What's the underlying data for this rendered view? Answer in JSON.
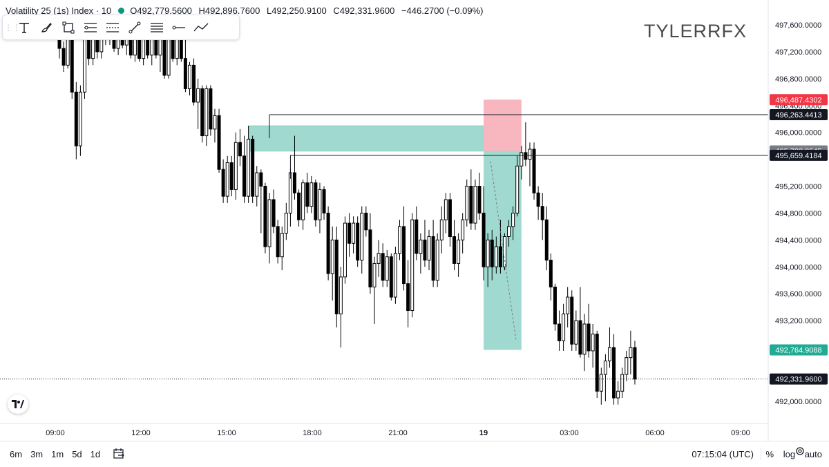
{
  "header": {
    "symbol": "Volatility 25 (1s) Index · 10",
    "open": "O492,779.5600",
    "high": "H492,896.7600",
    "low": "L492,250.9100",
    "close": "C492,331.9600",
    "change": "−446.2700 (−0.09%)"
  },
  "toolbar": {
    "tools": [
      "text-tool-icon",
      "brush-tool-icon",
      "rectangle-tool-icon",
      "fib-tool-icon",
      "pattern-tool-icon",
      "trendline-tool-icon",
      "parallel-channel-icon",
      "horizontal-ray-icon",
      "path-tool-icon"
    ]
  },
  "watermark": "TYLERRFX",
  "timeframes": [
    "6m",
    "3m",
    "1m",
    "5d",
    "1d"
  ],
  "clock": "07:15:04 (UTC)",
  "scale_options": [
    "%",
    "log",
    "auto"
  ],
  "colors": {
    "up": "#ffffff",
    "down": "#000000",
    "candle_outline": "#000000",
    "profit_zone": "#9fd9d0",
    "stop_zone": "#f8b6bf",
    "label_red": "#f23645",
    "label_black": "#131722",
    "label_grey": "#787b86",
    "label_teal": "#22ab94"
  },
  "chart_data": {
    "type": "candlestick",
    "title": "",
    "x_ticks": [
      "09:00",
      "12:00",
      "15:00",
      "18:00",
      "21:00",
      "19",
      "03:00",
      "06:00",
      "09:00"
    ],
    "y_ticks": [
      "497,600.0000",
      "497,200.0000",
      "496,800.0000",
      "496,400.0000",
      "496,000.0000",
      "495,200.0000",
      "494,800.0000",
      "494,400.0000",
      "494,000.0000",
      "493,600.0000",
      "493,200.0000",
      "492,000.0000"
    ],
    "ylim": [
      491900,
      497800
    ],
    "price_labels": [
      {
        "value": 496487.4302,
        "text": "496,487.4302",
        "color": "#f23645"
      },
      {
        "value": 496263.4413,
        "text": "496,263.4413",
        "color": "#131722"
      },
      {
        "value": 495723.9545,
        "text": "495,723.9545",
        "color": "#787b86"
      },
      {
        "value": 495659.4184,
        "text": "495,659.4184",
        "color": "#131722"
      },
      {
        "value": 492764.9088,
        "text": "492,764.9088",
        "color": "#22ab94"
      },
      {
        "value": 492331.96,
        "text": "492,331.9600",
        "color": "#131722"
      }
    ],
    "horizontal_rays": [
      {
        "from_slot": 50,
        "value": 496263.4413
      },
      {
        "from_slot": 55,
        "value": 495659.4184
      }
    ],
    "supply_zone": {
      "from_slot": 45,
      "to_slot": 102,
      "low": 495720,
      "high": 496100
    },
    "short_position": {
      "from_slot": 101,
      "to_slot": 110,
      "entry": 495723.9545,
      "stop": 496487.4302,
      "target": 492764.9088
    },
    "candles": [
      [
        497680,
        497720,
        497100,
        497250
      ],
      [
        497250,
        497350,
        496900,
        497000
      ],
      [
        497000,
        497700,
        496950,
        497600
      ],
      [
        497600,
        497700,
        496500,
        496600
      ],
      [
        496600,
        496750,
        495600,
        495800
      ],
      [
        495800,
        496700,
        495650,
        496600
      ],
      [
        496600,
        497550,
        496500,
        497450
      ],
      [
        497450,
        497600,
        497000,
        497100
      ],
      [
        497100,
        497750,
        497000,
        497650
      ],
      [
        497650,
        497750,
        497100,
        497200
      ],
      [
        497200,
        497700,
        497100,
        497650
      ],
      [
        497650,
        497700,
        497300,
        497400
      ],
      [
        497400,
        497750,
        497300,
        497650
      ],
      [
        497650,
        497700,
        497200,
        497250
      ],
      [
        497250,
        497750,
        497150,
        497700
      ],
      [
        497700,
        497720,
        497250,
        497300
      ],
      [
        497300,
        497700,
        497150,
        497600
      ],
      [
        497600,
        497700,
        497100,
        497150
      ],
      [
        497150,
        497650,
        497050,
        497550
      ],
      [
        497550,
        497650,
        497050,
        497100
      ],
      [
        497100,
        497700,
        497000,
        497650
      ],
      [
        497650,
        497750,
        497100,
        497150
      ],
      [
        497150,
        497700,
        497000,
        497600
      ],
      [
        497600,
        497650,
        497100,
        497150
      ],
      [
        497150,
        497650,
        496900,
        497550
      ],
      [
        497550,
        497600,
        496800,
        496850
      ],
      [
        496850,
        497450,
        496800,
        497400
      ],
      [
        497400,
        497500,
        497050,
        497100
      ],
      [
        497100,
        497650,
        497000,
        497600
      ],
      [
        497600,
        497700,
        497050,
        497100
      ],
      [
        497100,
        497600,
        496600,
        496650
      ],
      [
        496650,
        497050,
        496550,
        497000
      ],
      [
        497000,
        497100,
        496400,
        496450
      ],
      [
        496450,
        496800,
        496050,
        496650
      ],
      [
        496650,
        496700,
        495850,
        495950
      ],
      [
        495950,
        496700,
        495800,
        496650
      ],
      [
        496650,
        496700,
        495950,
        496050
      ],
      [
        496050,
        496350,
        495850,
        496250
      ],
      [
        496250,
        496350,
        495400,
        495450
      ],
      [
        495450,
        495600,
        494950,
        495050
      ],
      [
        495050,
        495650,
        494950,
        495550
      ],
      [
        495550,
        495650,
        495050,
        495150
      ],
      [
        495150,
        496000,
        495000,
        495850
      ],
      [
        495850,
        496050,
        495500,
        495650
      ],
      [
        495650,
        495950,
        494950,
        495050
      ],
      [
        495050,
        496100,
        494950,
        495900
      ],
      [
        495900,
        495950,
        494950,
        495050
      ],
      [
        495050,
        495500,
        494900,
        495400
      ],
      [
        495400,
        495450,
        494500,
        495200
      ],
      [
        495200,
        495250,
        494200,
        494300
      ],
      [
        494300,
        495100,
        494050,
        495000
      ],
      [
        495000,
        495150,
        494500,
        494600
      ],
      [
        494600,
        494700,
        494050,
        494150
      ],
      [
        494150,
        494600,
        493950,
        494500
      ],
      [
        494500,
        494950,
        494400,
        494800
      ],
      [
        494800,
        495450,
        494600,
        495400
      ],
      [
        495400,
        495950,
        495000,
        495100
      ],
      [
        495100,
        495150,
        494600,
        494700
      ],
      [
        494700,
        495300,
        494550,
        495250
      ],
      [
        495250,
        495400,
        494800,
        494900
      ],
      [
        494900,
        495350,
        494800,
        495250
      ],
      [
        495250,
        495300,
        494600,
        494700
      ],
      [
        494700,
        495250,
        494500,
        495150
      ],
      [
        495150,
        495200,
        494700,
        494800
      ],
      [
        494800,
        494900,
        493800,
        493900
      ],
      [
        493900,
        494600,
        493500,
        494400
      ],
      [
        494400,
        494600,
        493100,
        493300
      ],
      [
        493300,
        494000,
        492800,
        493850
      ],
      [
        493850,
        494750,
        493750,
        494650
      ],
      [
        494650,
        494800,
        494150,
        494350
      ],
      [
        494350,
        494750,
        494200,
        494650
      ],
      [
        494650,
        494750,
        494000,
        494100
      ],
      [
        494100,
        494900,
        493900,
        494800
      ],
      [
        494800,
        494900,
        494450,
        494550
      ],
      [
        494550,
        494800,
        493600,
        493700
      ],
      [
        493700,
        494150,
        493150,
        494050
      ],
      [
        494050,
        494400,
        493850,
        494200
      ],
      [
        494200,
        494350,
        493700,
        493800
      ],
      [
        493800,
        494250,
        493700,
        494150
      ],
      [
        494150,
        494200,
        493500,
        493550
      ],
      [
        493550,
        494300,
        493450,
        494200
      ],
      [
        494200,
        494700,
        494100,
        494600
      ],
      [
        494600,
        494900,
        493650,
        493750
      ],
      [
        493750,
        494100,
        493100,
        493350
      ],
      [
        493350,
        494800,
        493250,
        494700
      ],
      [
        494700,
        494900,
        494100,
        494200
      ],
      [
        494200,
        494500,
        493900,
        494400
      ],
      [
        494400,
        494700,
        494000,
        494100
      ],
      [
        494100,
        494550,
        493950,
        494450
      ],
      [
        494450,
        494700,
        493700,
        493800
      ],
      [
        493800,
        494500,
        493700,
        494400
      ],
      [
        494400,
        494900,
        494200,
        494700
      ],
      [
        494700,
        495100,
        494500,
        495000
      ],
      [
        495000,
        495100,
        494300,
        494450
      ],
      [
        494450,
        494700,
        493950,
        494050
      ],
      [
        494050,
        494500,
        493850,
        494400
      ],
      [
        494400,
        494800,
        494200,
        494700
      ],
      [
        494700,
        495300,
        494600,
        495200
      ],
      [
        495200,
        495450,
        494550,
        494650
      ],
      [
        494650,
        495300,
        494550,
        495200
      ],
      [
        495200,
        495400,
        494700,
        494800
      ],
      [
        494800,
        495200,
        493800,
        494000
      ],
      [
        494000,
        494500,
        493700,
        494400
      ],
      [
        494400,
        494550,
        493800,
        494000
      ],
      [
        494000,
        494450,
        493900,
        494300
      ],
      [
        494300,
        494700,
        493900,
        494000
      ],
      [
        494000,
        494500,
        493950,
        494450
      ],
      [
        494450,
        494700,
        494300,
        494600
      ],
      [
        494600,
        494900,
        494400,
        494800
      ],
      [
        494800,
        495650,
        494750,
        495500
      ],
      [
        495500,
        495800,
        495300,
        495700
      ],
      [
        495700,
        496150,
        495500,
        495600
      ],
      [
        495600,
        495850,
        495200,
        495750
      ],
      [
        495750,
        495850,
        495000,
        495100
      ],
      [
        495100,
        495200,
        494700,
        494900
      ],
      [
        494900,
        495100,
        494400,
        494700
      ],
      [
        494700,
        494900,
        493950,
        494100
      ],
      [
        494100,
        494200,
        493500,
        493700
      ],
      [
        493700,
        493750,
        493050,
        493150
      ],
      [
        493150,
        493350,
        492750,
        492900
      ],
      [
        492900,
        493450,
        492750,
        493300
      ],
      [
        493300,
        493700,
        493100,
        493550
      ],
      [
        493550,
        493650,
        492750,
        492850
      ],
      [
        492850,
        493350,
        492750,
        493200
      ],
      [
        493200,
        493700,
        492650,
        492700
      ],
      [
        492700,
        493300,
        492450,
        493150
      ],
      [
        493150,
        493450,
        492650,
        492750
      ],
      [
        492750,
        493150,
        492500,
        493000
      ],
      [
        493000,
        493050,
        492050,
        492150
      ],
      [
        492150,
        492500,
        491950,
        492400
      ],
      [
        492400,
        492700,
        492000,
        492600
      ],
      [
        492600,
        493100,
        492500,
        492800
      ],
      [
        492800,
        493000,
        491950,
        492050
      ],
      [
        492050,
        492300,
        491950,
        492150
      ],
      [
        492150,
        492500,
        492050,
        492400
      ],
      [
        492400,
        492750,
        492300,
        492650
      ],
      [
        492650,
        493050,
        492400,
        492800
      ],
      [
        492800,
        492900,
        492250,
        492330
      ]
    ]
  }
}
